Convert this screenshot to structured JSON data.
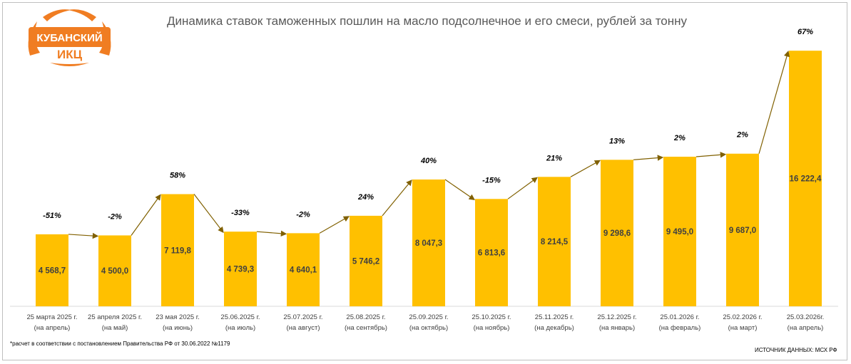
{
  "logo": {
    "line1": "КУБАНСКИЙ",
    "line2": "ИКЦ",
    "color": "#f07d22"
  },
  "footnote": "*расчет в соответствии с постановлением Правительства РФ от 30.06.2022 №1179",
  "source": "ИСТОЧНИК ДАННЫХ: МСХ РФ",
  "chart_data": {
    "type": "bar",
    "title": "Динамика ставок таможенных пошлин на масло подсолнечное и его смеси, рублей за тонну",
    "categories": [
      [
        "25 марта 2025 г.",
        "(на апрель)"
      ],
      [
        "25 апреля 2025 г.",
        "(на май)"
      ],
      [
        "23 мая 2025 г.",
        "(на июнь)"
      ],
      [
        "25.06.2025 г.",
        "(на июль)"
      ],
      [
        "25.07.2025 г.",
        "(на август)"
      ],
      [
        "25.08.2025 г.",
        "(на сентябрь)"
      ],
      [
        "25.09.2025 г.",
        "(на октябрь)"
      ],
      [
        "25.10.2025 г.",
        "(на ноябрь)"
      ],
      [
        "25.11.2025 г.",
        "(на декабрь)"
      ],
      [
        "25.12.2025 г.",
        "(на январь)"
      ],
      [
        "25.01.2026 г.",
        "(на февраль)"
      ],
      [
        "25.02.2026 г.",
        "(на март)"
      ],
      [
        "25.03.2026г.",
        "(на апрель)"
      ]
    ],
    "values": [
      4568.7,
      4500.0,
      7119.8,
      4739.3,
      4640.1,
      5746.2,
      8047.3,
      6813.6,
      8214.5,
      9298.6,
      9495.0,
      9687.0,
      16222.4
    ],
    "value_labels": [
      "4 568,7",
      "4 500,0",
      "7 119,8",
      "4 739,3",
      "4 640,1",
      "5 746,2",
      "8 047,3",
      "6 813,6",
      "8 214,5",
      "9 298,6",
      "9 495,0",
      "9 687,0",
      "16 222,4"
    ],
    "change_labels": [
      "-51%",
      "-2%",
      "58%",
      "-33%",
      "-2%",
      "24%",
      "40%",
      "-15%",
      "21%",
      "13%",
      "2%",
      "2%",
      "67%"
    ],
    "ylim": [
      0,
      17000
    ],
    "grid": false,
    "legend": "none",
    "bar_color": "#ffc000",
    "connector_color": "#806000"
  }
}
